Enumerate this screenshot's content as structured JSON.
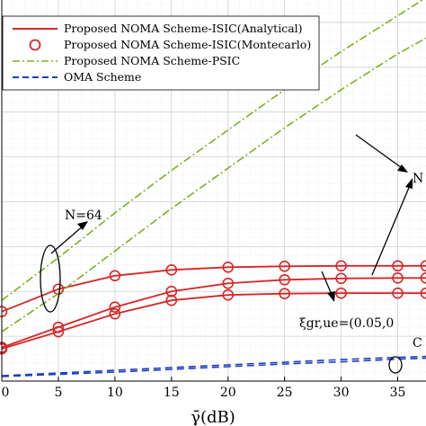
{
  "chart_data": {
    "type": "line",
    "xlabel": "γ̄(dB)",
    "ylabel": "",
    "xlim": [
      0,
      37.5
    ],
    "ylim": [
      0,
      8.5
    ],
    "x_ticks": [
      "0",
      "5",
      "10",
      "15",
      "20",
      "25",
      "30",
      "35"
    ],
    "grid": true,
    "legend_placement": "top-left",
    "series": [
      {
        "name": "Proposed NOMA Scheme-ISIC(Analytical)",
        "style": "solid",
        "color": "#d62728",
        "curves": [
          {
            "x": [
              0,
              5,
              10,
              15,
              20,
              25,
              30,
              35,
              37.5
            ],
            "y": [
              1.55,
              2.05,
              2.35,
              2.48,
              2.54,
              2.56,
              2.57,
              2.57,
              2.57
            ]
          },
          {
            "x": [
              0,
              5,
              10,
              15,
              20,
              25,
              30,
              35,
              37.5
            ],
            "y": [
              0.75,
              1.2,
              1.65,
              2.0,
              2.18,
              2.26,
              2.29,
              2.3,
              2.3
            ]
          },
          {
            "x": [
              0,
              5,
              10,
              15,
              20,
              25,
              30,
              35,
              37.5
            ],
            "y": [
              0.72,
              1.1,
              1.5,
              1.8,
              1.92,
              1.95,
              1.96,
              1.96,
              1.96
            ]
          }
        ]
      },
      {
        "name": "Proposed NOMA Scheme-ISIC(Montecarlo)",
        "style": "markers",
        "color": "#d62728",
        "curves": [
          {
            "x": [
              0,
              5,
              10,
              15,
              20,
              25,
              30,
              35,
              37.5
            ],
            "y": [
              1.55,
              2.05,
              2.35,
              2.48,
              2.54,
              2.56,
              2.57,
              2.57,
              2.57
            ]
          },
          {
            "x": [
              0,
              5,
              10,
              15,
              20,
              25,
              30,
              35,
              37.5
            ],
            "y": [
              0.75,
              1.2,
              1.65,
              2.0,
              2.18,
              2.26,
              2.29,
              2.3,
              2.3
            ]
          },
          {
            "x": [
              0,
              5,
              10,
              15,
              20,
              25,
              30,
              35,
              37.5
            ],
            "y": [
              0.72,
              1.1,
              1.5,
              1.8,
              1.92,
              1.95,
              1.96,
              1.96,
              1.96
            ]
          }
        ]
      },
      {
        "name": "Proposed NOMA Scheme-PSIC",
        "style": "dashdot",
        "color": "#7fae22",
        "curves": [
          {
            "x": [
              0,
              5,
              10,
              15,
              20,
              25,
              30,
              35,
              37.5
            ],
            "y": [
              1.8,
              2.75,
              3.75,
              4.7,
              5.6,
              6.5,
              7.35,
              8.15,
              8.55
            ]
          },
          {
            "x": [
              0,
              5,
              10,
              15,
              20,
              25,
              30,
              35,
              37.5
            ],
            "y": [
              1.1,
              1.95,
              2.9,
              3.85,
              4.75,
              5.65,
              6.5,
              7.3,
              7.65
            ]
          }
        ]
      },
      {
        "name": "OMA Scheme",
        "style": "dashed",
        "color": "#1f3fbf",
        "curves": [
          {
            "x": [
              0,
              5,
              10,
              15,
              20,
              25,
              30,
              35,
              37.5
            ],
            "y": [
              0.12,
              0.18,
              0.24,
              0.3,
              0.36,
              0.42,
              0.48,
              0.53,
              0.55
            ]
          },
          {
            "x": [
              0,
              5,
              10,
              15,
              20,
              25,
              30,
              35,
              37.5
            ],
            "y": [
              0.1,
              0.15,
              0.2,
              0.26,
              0.32,
              0.38,
              0.43,
              0.49,
              0.51
            ]
          }
        ]
      }
    ],
    "annotations": [
      "N=64",
      "N",
      "ξgr,ue=(0.05,0",
      "C"
    ]
  }
}
